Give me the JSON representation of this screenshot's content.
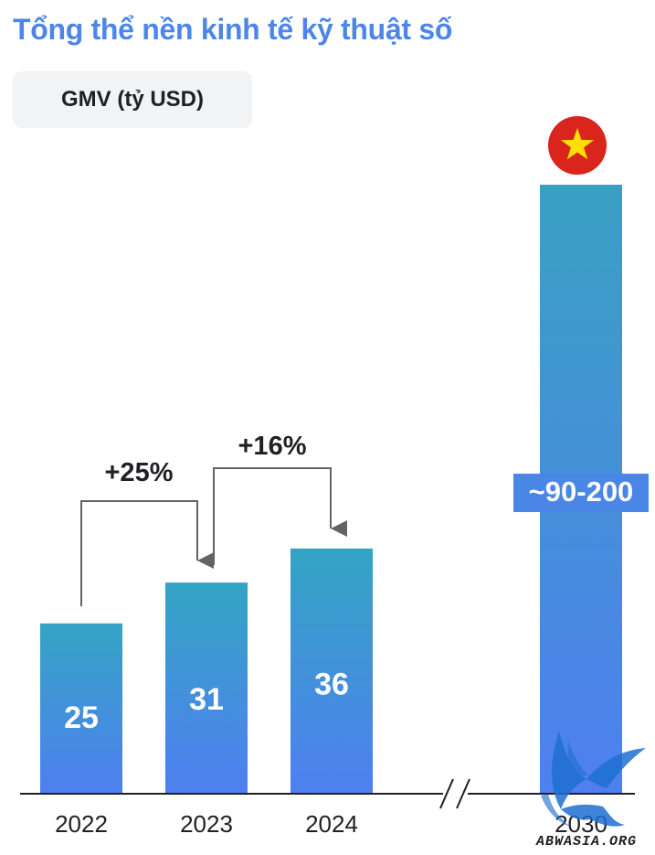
{
  "header": {
    "title": "Tổng thể nền kinh tế kỹ thuật số",
    "metric_badge": "GMV (tỷ USD)"
  },
  "colors": {
    "title": "#4c86e8",
    "bar_top": "#34a4c4",
    "bar_bottom": "#4f7ff0",
    "axis": "#202124",
    "arrow": "#606368",
    "flag_red": "#da251d",
    "flag_star": "#ffdf00"
  },
  "chart_data": {
    "type": "bar",
    "title": "Tổng thể nền kinh tế kỹ thuật số",
    "ylabel": "GMV (tỷ USD)",
    "xlabel": "",
    "ylim": [
      0,
      200
    ],
    "grid": false,
    "axis_break_between": [
      "2024",
      "2030"
    ],
    "categories": [
      "2022",
      "2023",
      "2024",
      "2030"
    ],
    "values": [
      25,
      31,
      36,
      90
    ],
    "value_range_2030": [
      90,
      200
    ],
    "data_labels": [
      "25",
      "31",
      "36",
      "~90-200"
    ],
    "growth_annotations": [
      {
        "from": "2022",
        "to": "2023",
        "label": "+25%"
      },
      {
        "from": "2023",
        "to": "2024",
        "label": "+16%"
      }
    ],
    "flag_icon": "vietnam-flag-icon"
  },
  "watermark": {
    "text": "ABWASIA.ORG",
    "icon": "winged-creature-logo-icon"
  }
}
